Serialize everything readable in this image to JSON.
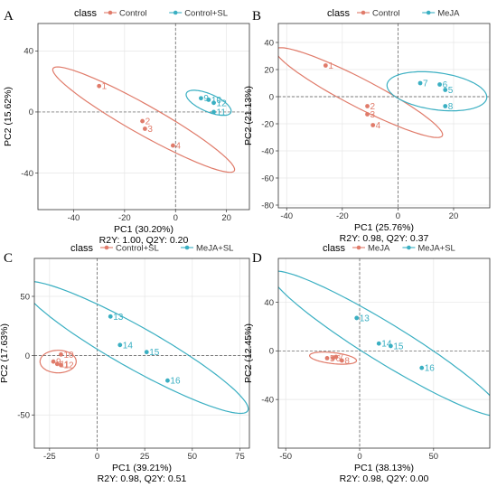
{
  "chart_data": [
    {
      "type": "scatter",
      "panel_label": "A",
      "legend_title": "class",
      "legend": [
        {
          "name": "Control",
          "color": "#E07B6A"
        },
        {
          "name": "Control+SL",
          "color": "#3AAFC2"
        }
      ],
      "xlabel": "PC1 (30.20%)",
      "ylabel": "PC2 (15.62%)",
      "stats": "R2Y: 1.00, Q2Y: 0.20",
      "xlim": [
        -54,
        29
      ],
      "ylim": [
        -64,
        58
      ],
      "xticks": [
        -40,
        -20,
        0,
        20
      ],
      "yticks": [
        -40,
        0,
        40
      ],
      "grid": true,
      "series": [
        {
          "name": "Control",
          "color": "#E07B6A",
          "points": [
            {
              "label": "1",
              "x": -30,
              "y": 17
            },
            {
              "label": "2",
              "x": -13,
              "y": -6
            },
            {
              "label": "3",
              "x": -12,
              "y": -11
            },
            {
              "label": "4",
              "x": -1,
              "y": -22
            }
          ],
          "ellipse": {
            "cx": -12.5,
            "cy": -5,
            "rx": 49,
            "ry": 8,
            "angle": -44
          }
        },
        {
          "name": "Control+SL",
          "color": "#3AAFC2",
          "points": [
            {
              "label": "9",
              "x": 10,
              "y": 9
            },
            {
              "label": "10",
              "x": 13,
              "y": 8
            },
            {
              "label": "11",
              "x": 15,
              "y": 0
            },
            {
              "label": "12",
              "x": 15,
              "y": 6
            }
          ],
          "ellipse": {
            "cx": 13,
            "cy": 6,
            "rx": 11,
            "ry": 5,
            "angle": -42
          }
        }
      ]
    },
    {
      "type": "scatter",
      "panel_label": "B",
      "legend_title": "class",
      "legend": [
        {
          "name": "Control",
          "color": "#E07B6A"
        },
        {
          "name": "MeJA",
          "color": "#3AAFC2"
        }
      ],
      "xlabel": "PC1 (25.76%)",
      "ylabel": "PC2 (21.13%)",
      "stats": "R2Y: 0.98, Q2Y: 0.37",
      "xlim": [
        -43,
        33
      ],
      "ylim": [
        -82,
        54
      ],
      "xticks": [
        -40,
        -20,
        0,
        20
      ],
      "yticks": [
        -80,
        -60,
        -40,
        -20,
        0,
        20,
        40
      ],
      "grid": true,
      "series": [
        {
          "name": "Control",
          "color": "#E07B6A",
          "points": [
            {
              "label": "1",
              "x": -26,
              "y": 23
            },
            {
              "label": "2",
              "x": -11,
              "y": -7
            },
            {
              "label": "3",
              "x": -11,
              "y": -13
            },
            {
              "label": "4",
              "x": -9,
              "y": -21
            }
          ],
          "ellipse": {
            "cx": -14,
            "cy": 3,
            "rx": 44,
            "ry": 8,
            "angle": -48
          }
        },
        {
          "name": "MeJA",
          "color": "#3AAFC2",
          "points": [
            {
              "label": "5",
              "x": 17,
              "y": 5
            },
            {
              "label": "6",
              "x": 15,
              "y": 9
            },
            {
              "label": "7",
              "x": 8,
              "y": 10
            },
            {
              "label": "8",
              "x": 17,
              "y": -7
            }
          ],
          "ellipse": {
            "cx": 14,
            "cy": 4,
            "rx": 19,
            "ry": 13,
            "angle": -27
          }
        }
      ]
    },
    {
      "type": "scatter",
      "panel_label": "C",
      "legend_title": "class",
      "legend": [
        {
          "name": "Control+SL",
          "color": "#E07B6A"
        },
        {
          "name": "MeJA+SL",
          "color": "#3AAFC2"
        }
      ],
      "xlabel": "PC1 (39.21%)",
      "ylabel": "PC2 (17.63%)",
      "stats": "R2Y: 0.98, Q2Y: 0.51",
      "xlim": [
        -33,
        80
      ],
      "ylim": [
        -78,
        82
      ],
      "xticks": [
        -25,
        0,
        25,
        50,
        75
      ],
      "yticks": [
        -50,
        0,
        50
      ],
      "grid": true,
      "series": [
        {
          "name": "Control+SL",
          "color": "#E07B6A",
          "points": [
            {
              "label": "9",
              "x": -23,
              "y": -5
            },
            {
              "label": "10",
              "x": -19,
              "y": 1
            },
            {
              "label": "11",
              "x": -21,
              "y": -7
            },
            {
              "label": "12",
              "x": -19,
              "y": -8
            }
          ],
          "ellipse": {
            "cx": -20.5,
            "cy": -5,
            "rx": 9.5,
            "ry": 9.5,
            "angle": -30
          }
        },
        {
          "name": "MeJA+SL",
          "color": "#3AAFC2",
          "points": [
            {
              "label": "13",
              "x": 7,
              "y": 33
            },
            {
              "label": "14",
              "x": 12,
              "y": 9
            },
            {
              "label": "15",
              "x": 26,
              "y": 3
            },
            {
              "label": "16",
              "x": 37,
              "y": -21
            }
          ],
          "ellipse": {
            "cx": 20,
            "cy": 7,
            "rx": 80,
            "ry": 15,
            "angle": -43
          }
        }
      ]
    },
    {
      "type": "scatter",
      "panel_label": "D",
      "legend_title": "class",
      "legend": [
        {
          "name": "MeJA",
          "color": "#E07B6A"
        },
        {
          "name": "MeJA+SL",
          "color": "#3AAFC2"
        }
      ],
      "xlabel": "PC1 (38.13%)",
      "ylabel": "PC2 (12.45%)",
      "stats": "R2Y: 0.98, Q2Y: 0.00",
      "xlim": [
        -55,
        88
      ],
      "ylim": [
        -80,
        76
      ],
      "xticks": [
        -50,
        0,
        50
      ],
      "yticks": [
        -40,
        0,
        40
      ],
      "grid": true,
      "series": [
        {
          "name": "MeJA",
          "color": "#E07B6A",
          "points": [
            {
              "label": "5",
              "x": -22,
              "y": -6
            },
            {
              "label": "6",
              "x": -18,
              "y": -6
            },
            {
              "label": "7",
              "x": -16,
              "y": -5
            },
            {
              "label": "8",
              "x": -12,
              "y": -8
            }
          ],
          "ellipse": {
            "cx": -18,
            "cy": -6,
            "rx": 16,
            "ry": 4.5,
            "angle": -8
          }
        },
        {
          "name": "MeJA+SL",
          "color": "#3AAFC2",
          "points": [
            {
              "label": "13",
              "x": -2,
              "y": 27
            },
            {
              "label": "14",
              "x": 13,
              "y": 6
            },
            {
              "label": "15",
              "x": 21,
              "y": 4
            },
            {
              "label": "16",
              "x": 42,
              "y": -14
            }
          ],
          "ellipse": {
            "cx": 18,
            "cy": 6,
            "rx": 97,
            "ry": 15,
            "angle": -37
          }
        }
      ]
    }
  ]
}
